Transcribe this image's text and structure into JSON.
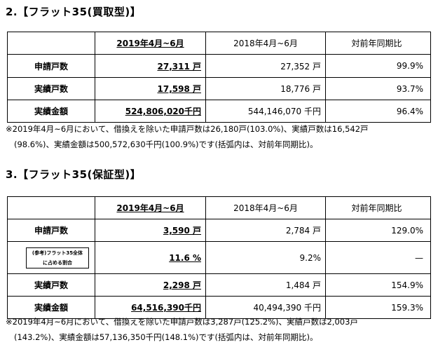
{
  "section1": {
    "heading": "2.【フラット35(買取型)】",
    "header": {
      "col2": "2019年4月~6月",
      "col3": "2018年4月~6月",
      "col4": "対前年同期比"
    },
    "rows": [
      {
        "label": "申請戸数",
        "current": "27,311 戸",
        "previous": "27,352 戸",
        "ratio": "99.9%"
      },
      {
        "label": "実績戸数",
        "current": "17,598 戸",
        "previous": "18,776 戸",
        "ratio": "93.7%"
      },
      {
        "label": "実績金額",
        "current": "524,806,020千円",
        "previous": "544,146,070 千円",
        "ratio": "96.4%"
      }
    ],
    "note_line1": "※2019年4月~6月において、借換えを除いた申請戸数は26,180戸(103.0%)、実績戸数は16,542戸",
    "note_line2": "(98.6%)、実績金額は500,572,630千円(100.9%)です(括弧内は、対前年同期比)。"
  },
  "section2": {
    "heading": "3.【フラット35(保証型)】",
    "header": {
      "col2": "2019年4月~6月",
      "col3": "2018年4月~6月",
      "col4": "対前年同期比"
    },
    "rows": [
      {
        "label": "申請戸数",
        "current": "3,590 戸",
        "previous": "2,784 戸",
        "ratio": "129.0%"
      },
      {
        "label_line1": "(参考)フラット35全体",
        "label_line2": "に占める割合",
        "current": "11.6 %",
        "previous": "9.2%",
        "ratio": "—"
      },
      {
        "label": "実績戸数",
        "current": "2,298 戸",
        "previous": "1,484 戸",
        "ratio": "154.9%"
      },
      {
        "label": "実績金額",
        "current": "64,516,390千円",
        "previous": "40,494,390 千円",
        "ratio": "159.3%"
      }
    ],
    "note_line1": "※2019年4月~6月において、借換えを除いた申請戸数は3,287戸(125.2%)、実績戸数は2,003戸",
    "note_line2": "(143.2%)、実績金額は57,136,350千円(148.1%)です(括弧内は、対前年同期比)。"
  }
}
